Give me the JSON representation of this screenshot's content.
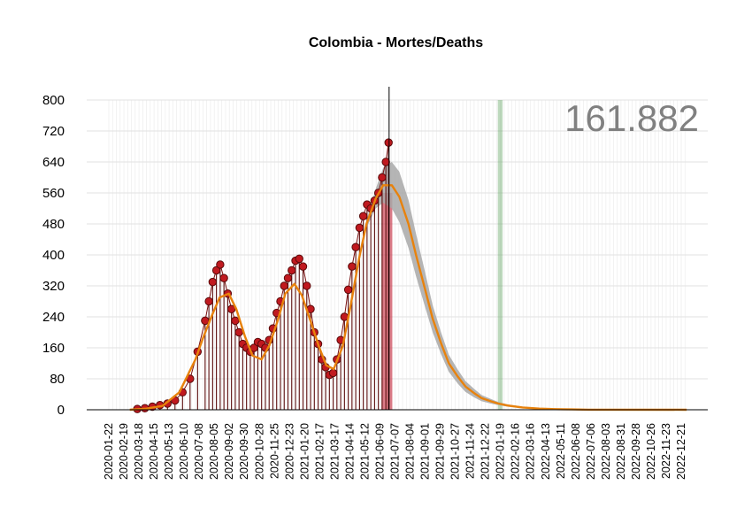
{
  "chart_data": {
    "type": "line",
    "title": "Colombia - Mortes/Deaths",
    "total_label": "161.882",
    "xlabel": "",
    "ylabel": "",
    "ylim": [
      0,
      800
    ],
    "y_ticks": [
      0,
      80,
      160,
      240,
      320,
      400,
      480,
      560,
      640,
      720,
      800
    ],
    "x_range": [
      "2020-01-22",
      "2022-12-31"
    ],
    "x_ticks": [
      "2020-01-22",
      "2020-02-19",
      "2020-03-18",
      "2020-04-15",
      "2020-05-13",
      "2020-06-10",
      "2020-07-08",
      "2020-08-05",
      "2020-09-02",
      "2020-09-30",
      "2020-10-28",
      "2020-11-25",
      "2020-12-23",
      "2021-01-20",
      "2021-02-17",
      "2021-03-17",
      "2021-04-14",
      "2021-05-12",
      "2021-06-09",
      "2021-07-07",
      "2021-08-04",
      "2021-09-01",
      "2021-09-29",
      "2021-10-27",
      "2021-11-24",
      "2021-12-22",
      "2022-01-19",
      "2022-02-16",
      "2022-03-16",
      "2022-04-13",
      "2022-05-11",
      "2022-06-08",
      "2022-07-06",
      "2022-08-03",
      "2022-08-31",
      "2022-09-28",
      "2022-10-26",
      "2022-11-23",
      "2022-12-21"
    ],
    "grid": true,
    "today_line": "2021-06-26",
    "highlight_red": [
      "2021-06-12",
      "2021-07-02"
    ],
    "highlight_green": [
      "2022-01-14",
      "2022-01-23"
    ],
    "series": [
      {
        "kind": "observed_daily",
        "x": [
          "2020-03-15",
          "2020-03-29",
          "2020-04-12",
          "2020-04-26",
          "2020-05-10",
          "2020-05-24",
          "2020-06-07",
          "2020-06-21",
          "2020-07-05",
          "2020-07-19",
          "2020-07-26",
          "2020-08-02",
          "2020-08-09",
          "2020-08-16",
          "2020-08-23",
          "2020-08-30",
          "2020-09-06",
          "2020-09-13",
          "2020-09-20",
          "2020-09-27",
          "2020-10-04",
          "2020-10-11",
          "2020-10-18",
          "2020-10-25",
          "2020-11-01",
          "2020-11-08",
          "2020-11-15",
          "2020-11-22",
          "2020-11-29",
          "2020-12-06",
          "2020-12-13",
          "2020-12-20",
          "2020-12-27",
          "2021-01-03",
          "2021-01-10",
          "2021-01-17",
          "2021-01-24",
          "2021-01-31",
          "2021-02-07",
          "2021-02-14",
          "2021-02-21",
          "2021-02-28",
          "2021-03-07",
          "2021-03-14",
          "2021-03-21",
          "2021-03-28",
          "2021-04-04",
          "2021-04-11",
          "2021-04-18",
          "2021-04-25",
          "2021-05-02",
          "2021-05-09",
          "2021-05-16",
          "2021-05-23",
          "2021-05-30",
          "2021-06-06",
          "2021-06-13",
          "2021-06-20",
          "2021-06-25"
        ],
        "values": [
          2,
          4,
          8,
          12,
          16,
          24,
          45,
          80,
          150,
          230,
          280,
          330,
          360,
          375,
          340,
          300,
          260,
          230,
          200,
          170,
          160,
          150,
          160,
          175,
          170,
          160,
          180,
          210,
          250,
          280,
          320,
          340,
          360,
          385,
          390,
          370,
          320,
          260,
          200,
          170,
          130,
          110,
          90,
          95,
          130,
          180,
          240,
          310,
          370,
          420,
          470,
          500,
          530,
          520,
          540,
          560,
          600,
          640,
          690
        ]
      },
      {
        "kind": "fitted_trend",
        "x": [
          "2020-03-01",
          "2020-04-01",
          "2020-05-01",
          "2020-06-01",
          "2020-07-01",
          "2020-07-15",
          "2020-08-01",
          "2020-08-15",
          "2020-09-01",
          "2020-09-15",
          "2020-10-01",
          "2020-10-15",
          "2020-11-01",
          "2020-11-15",
          "2020-12-01",
          "2020-12-15",
          "2021-01-01",
          "2021-01-15",
          "2021-02-01",
          "2021-02-15",
          "2021-03-01",
          "2021-03-15",
          "2021-04-01",
          "2021-04-15",
          "2021-05-01",
          "2021-05-15",
          "2021-06-01",
          "2021-06-15",
          "2021-07-01",
          "2021-07-15",
          "2021-08-01",
          "2021-08-15",
          "2021-09-01",
          "2021-09-15",
          "2021-10-01",
          "2021-10-15",
          "2021-11-01",
          "2021-11-15",
          "2021-12-01",
          "2021-12-15",
          "2022-01-01",
          "2022-01-15",
          "2022-02-01",
          "2022-03-01",
          "2022-04-01",
          "2022-05-01",
          "2022-06-01",
          "2022-07-01",
          "2022-12-31"
        ],
        "values": [
          0,
          3,
          10,
          45,
          130,
          185,
          245,
          290,
          300,
          260,
          190,
          140,
          130,
          165,
          230,
          300,
          325,
          295,
          225,
          165,
          115,
          105,
          165,
          265,
          390,
          480,
          545,
          580,
          580,
          550,
          480,
          400,
          310,
          235,
          170,
          120,
          85,
          60,
          43,
          30,
          22,
          16,
          11,
          6,
          3,
          1.5,
          0.8,
          0.3,
          0
        ],
        "band": [
          0,
          0,
          0,
          0,
          0,
          0,
          0,
          0,
          0,
          0,
          0,
          0,
          0,
          0,
          0,
          0,
          0,
          0,
          0,
          0,
          0,
          0,
          0,
          0,
          0,
          10,
          25,
          45,
          60,
          65,
          62,
          55,
          45,
          35,
          28,
          22,
          18,
          14,
          11,
          8,
          6,
          4,
          3,
          2,
          1,
          0.5,
          0.2,
          0,
          0
        ]
      }
    ]
  }
}
